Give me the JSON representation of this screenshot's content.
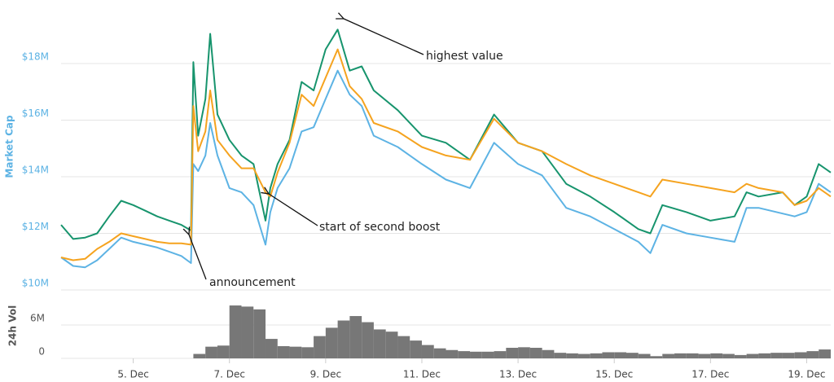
{
  "chart_data": [
    {
      "type": "line",
      "ylabel": "Market Cap",
      "x": [
        3.5,
        3.75,
        4.0,
        4.25,
        4.5,
        4.75,
        5.0,
        5.25,
        5.5,
        5.75,
        6.0,
        6.2,
        6.25,
        6.35,
        6.5,
        6.6,
        6.75,
        7.0,
        7.25,
        7.5,
        7.75,
        7.85,
        8.0,
        8.25,
        8.5,
        8.75,
        9.0,
        9.25,
        9.5,
        9.75,
        10.0,
        10.5,
        11.0,
        11.5,
        12.0,
        12.5,
        13.0,
        13.5,
        14.0,
        14.5,
        15.0,
        15.5,
        15.75,
        16.0,
        16.5,
        17.0,
        17.5,
        17.75,
        18.0,
        18.5,
        18.75,
        19.0,
        19.25,
        19.5
      ],
      "series": [
        {
          "color": "#5db3e4",
          "values": [
            11.15,
            10.85,
            10.8,
            11.05,
            11.45,
            11.85,
            11.7,
            11.6,
            11.5,
            11.35,
            11.2,
            10.95,
            14.45,
            14.2,
            14.75,
            15.9,
            14.75,
            13.6,
            13.45,
            13.0,
            11.6,
            12.75,
            13.6,
            14.3,
            15.6,
            15.75,
            16.75,
            17.75,
            16.9,
            16.5,
            15.45,
            15.05,
            14.45,
            13.9,
            13.6,
            15.2,
            14.45,
            14.05,
            12.9,
            12.6,
            12.15,
            11.7,
            11.3,
            12.3,
            12.0,
            11.85,
            11.7,
            12.9,
            12.9,
            12.7,
            12.6,
            12.75,
            13.75,
            13.45
          ]
        },
        {
          "color": "#17946d",
          "values": [
            12.3,
            11.8,
            11.85,
            12.0,
            12.6,
            13.15,
            13.0,
            12.8,
            12.6,
            12.45,
            12.3,
            12.1,
            18.05,
            15.45,
            16.75,
            19.05,
            16.2,
            15.3,
            14.75,
            14.45,
            12.45,
            13.6,
            14.45,
            15.3,
            17.35,
            17.05,
            18.5,
            19.2,
            17.75,
            17.9,
            17.05,
            16.35,
            15.45,
            15.2,
            14.6,
            16.2,
            15.2,
            14.9,
            13.75,
            13.3,
            12.75,
            12.15,
            12.0,
            13.0,
            12.75,
            12.45,
            12.6,
            13.45,
            13.3,
            13.45,
            13.0,
            13.3,
            14.45,
            14.15
          ]
        },
        {
          "color": "#f5a31f",
          "values": [
            11.15,
            11.05,
            11.1,
            11.45,
            11.7,
            12.0,
            11.9,
            11.8,
            11.7,
            11.65,
            11.65,
            11.6,
            16.5,
            14.9,
            15.6,
            17.05,
            15.3,
            14.75,
            14.3,
            14.3,
            13.45,
            13.3,
            14.15,
            15.2,
            16.9,
            16.5,
            17.5,
            18.5,
            17.2,
            16.75,
            15.9,
            15.6,
            15.05,
            14.75,
            14.6,
            16.05,
            15.2,
            14.9,
            14.45,
            14.05,
            13.75,
            13.45,
            13.3,
            13.9,
            13.75,
            13.6,
            13.45,
            13.75,
            13.6,
            13.45,
            13.0,
            13.15,
            13.6,
            13.3
          ]
        }
      ],
      "xlim": [
        3.5,
        19.5
      ],
      "ylim": [
        10,
        20
      ],
      "yticks": [
        {
          "value": 10,
          "label": "$10M"
        },
        {
          "value": 12,
          "label": "$12M"
        },
        {
          "value": 14,
          "label": "$14M"
        },
        {
          "value": 16,
          "label": "$16M"
        },
        {
          "value": 18,
          "label": "$18M"
        }
      ],
      "grid": true,
      "annotations": [
        {
          "text": "highest value"
        },
        {
          "text": "start of second boost"
        },
        {
          "text": "announcement"
        }
      ]
    },
    {
      "type": "bar",
      "ylabel": "24h Vol",
      "color": "#777777",
      "x": [
        6.25,
        6.5,
        6.75,
        7.0,
        7.25,
        7.5,
        7.75,
        8.0,
        8.25,
        8.5,
        8.75,
        9.0,
        9.25,
        9.5,
        9.75,
        10.0,
        10.25,
        10.5,
        10.75,
        11.0,
        11.25,
        11.5,
        11.75,
        12.0,
        12.25,
        12.5,
        12.75,
        13.0,
        13.25,
        13.5,
        13.75,
        14.0,
        14.25,
        14.5,
        14.75,
        15.0,
        15.25,
        15.5,
        15.75,
        16.0,
        16.25,
        16.5,
        16.75,
        17.0,
        17.25,
        17.5,
        17.75,
        18.0,
        18.25,
        18.5,
        18.75,
        19.0,
        19.25
      ],
      "values": [
        0.8,
        2.1,
        2.3,
        9.5,
        9.3,
        8.8,
        3.5,
        2.2,
        2.1,
        2.0,
        4.0,
        5.5,
        6.8,
        7.6,
        6.5,
        5.2,
        4.8,
        4.0,
        3.2,
        2.4,
        1.8,
        1.5,
        1.3,
        1.2,
        1.2,
        1.3,
        1.9,
        2.0,
        1.9,
        1.5,
        1.0,
        0.9,
        0.8,
        0.9,
        1.1,
        1.1,
        1.0,
        0.8,
        0.4,
        0.8,
        0.9,
        0.9,
        0.8,
        0.9,
        0.8,
        0.6,
        0.8,
        0.9,
        1.0,
        1.0,
        1.1,
        1.3,
        1.6
      ],
      "xlim": [
        3.5,
        19.5
      ],
      "ylim": [
        0,
        11.7
      ],
      "yticks": [
        0,
        {
          "value": 6,
          "label": "6M"
        }
      ],
      "xticks": [
        {
          "value": 5,
          "label": "5. Dec"
        },
        {
          "value": 7,
          "label": "7. Dec"
        },
        {
          "value": 9,
          "label": "9. Dec"
        },
        {
          "value": 11,
          "label": "11. Dec"
        },
        {
          "value": 13,
          "label": "13. Dec"
        },
        {
          "value": 15,
          "label": "15. Dec"
        },
        {
          "value": 17,
          "label": "17. Dec"
        },
        {
          "value": 19,
          "label": "19. Dec"
        }
      ],
      "grid": true
    }
  ]
}
